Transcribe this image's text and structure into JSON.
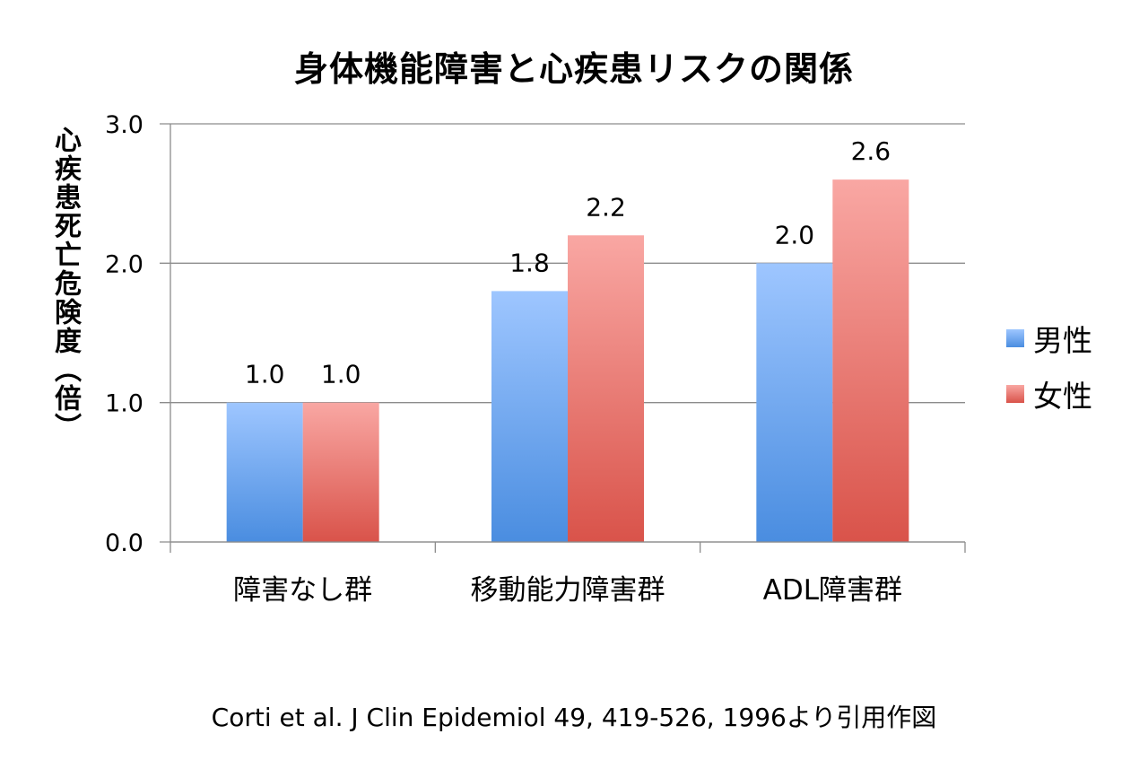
{
  "chart_data": {
    "type": "bar",
    "title": "身体機能障害と心疾患リスクの関係",
    "ylabel": "心疾患死亡危険度（倍）",
    "xlabel": "",
    "categories": [
      "障害なし群",
      "移動能力障害群",
      "ADL障害群"
    ],
    "series": [
      {
        "name": "男性",
        "values": [
          1.0,
          1.8,
          2.0
        ],
        "color_top": "#9ec6ff",
        "color_bottom": "#4a8de0"
      },
      {
        "name": "女性",
        "values": [
          1.0,
          2.2,
          2.6
        ],
        "color_top": "#f9a7a3",
        "color_bottom": "#d9534a"
      }
    ],
    "data_labels": [
      [
        "1.0",
        "1.8",
        "2.0"
      ],
      [
        "1.0",
        "2.2",
        "2.6"
      ]
    ],
    "ylim": [
      0,
      3.0
    ],
    "yticks": [
      0.0,
      1.0,
      2.0,
      3.0
    ],
    "ytick_labels": [
      "0.0",
      "1.0",
      "2.0",
      "3.0"
    ],
    "grid": true,
    "legend": "right"
  },
  "source": "Corti et al. J Clin Epidemiol 49, 419-526, 1996より引用作図"
}
